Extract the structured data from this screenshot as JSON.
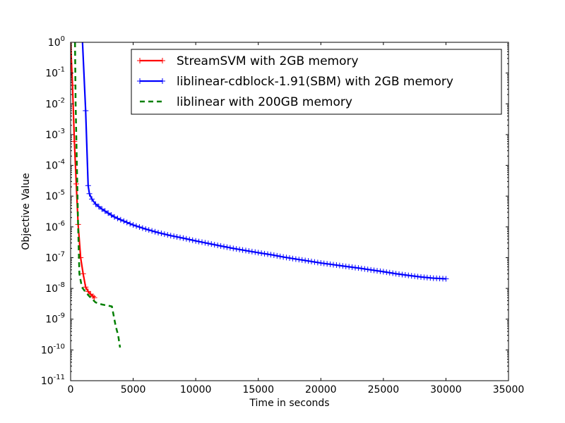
{
  "chart_data": {
    "type": "line",
    "title": "",
    "xlabel": "Time in seconds",
    "ylabel": "Objective Value",
    "xlim": [
      0,
      35000
    ],
    "ylim": [
      1e-11,
      1
    ],
    "yscale": "log",
    "xticks": [
      0,
      5000,
      10000,
      15000,
      20000,
      25000,
      30000,
      35000
    ],
    "xtick_labels": [
      "0",
      "5000",
      "10000",
      "15000",
      "20000",
      "25000",
      "30000",
      "35000"
    ],
    "yticks": [
      {
        "base": "10",
        "exp": "0",
        "value": 1
      },
      {
        "base": "10",
        "exp": "-1",
        "value": 0.1
      },
      {
        "base": "10",
        "exp": "-2",
        "value": 0.01
      },
      {
        "base": "10",
        "exp": "-3",
        "value": 0.001
      },
      {
        "base": "10",
        "exp": "-4",
        "value": 0.0001
      },
      {
        "base": "10",
        "exp": "-5",
        "value": 1e-05
      },
      {
        "base": "10",
        "exp": "-6",
        "value": 1e-06
      },
      {
        "base": "10",
        "exp": "-7",
        "value": 1e-07
      },
      {
        "base": "10",
        "exp": "-8",
        "value": 1e-08
      },
      {
        "base": "10",
        "exp": "-9",
        "value": 1e-09
      },
      {
        "base": "10",
        "exp": "-10",
        "value": 1e-10
      },
      {
        "base": "10",
        "exp": "-11",
        "value": 1e-11
      }
    ],
    "grid": false,
    "legend_position": "top-right",
    "series": [
      {
        "name": "StreamSVM with 2GB memory",
        "color": "#ff0000",
        "linestyle": "solid",
        "marker": "+",
        "points": [
          [
            0,
            1.0
          ],
          [
            150,
            0.04
          ],
          [
            300,
            0.0006
          ],
          [
            450,
            2.5e-05
          ],
          [
            600,
            1.2e-06
          ],
          [
            800,
            1e-07
          ],
          [
            1000,
            3e-08
          ],
          [
            1200,
            1.1e-08
          ],
          [
            1400,
            8e-09
          ],
          [
            1600,
            6.5e-09
          ],
          [
            1800,
            5.5e-09
          ],
          [
            1900,
            5e-09
          ]
        ]
      },
      {
        "name": "liblinear-cdblock-1.91(SBM) with 2GB memory",
        "color": "#0000ff",
        "linestyle": "solid",
        "marker": "+",
        "points": [
          [
            950,
            1.0
          ],
          [
            1200,
            0.006
          ],
          [
            1400,
            2.2e-05
          ],
          [
            1500,
            1.2e-05
          ],
          [
            1700,
            8e-06
          ],
          [
            2000,
            5.5e-06
          ],
          [
            2500,
            3.8e-06
          ],
          [
            3000,
            2.8e-06
          ],
          [
            3500,
            2.1e-06
          ],
          [
            4000,
            1.7e-06
          ],
          [
            5000,
            1.15e-06
          ],
          [
            6000,
            8.5e-07
          ],
          [
            7000,
            6.5e-07
          ],
          [
            8000,
            5.2e-07
          ],
          [
            9000,
            4.3e-07
          ],
          [
            10000,
            3.5e-07
          ],
          [
            11000,
            2.9e-07
          ],
          [
            12000,
            2.4e-07
          ],
          [
            13000,
            2e-07
          ],
          [
            14000,
            1.7e-07
          ],
          [
            15000,
            1.45e-07
          ],
          [
            16000,
            1.25e-07
          ],
          [
            17000,
            1.05e-07
          ],
          [
            18000,
            9e-08
          ],
          [
            19000,
            7.8e-08
          ],
          [
            20000,
            6.7e-08
          ],
          [
            21000,
            5.9e-08
          ],
          [
            22000,
            5.2e-08
          ],
          [
            23000,
            4.6e-08
          ],
          [
            24000,
            4e-08
          ],
          [
            25000,
            3.5e-08
          ],
          [
            26000,
            3e-08
          ],
          [
            27000,
            2.65e-08
          ],
          [
            28000,
            2.35e-08
          ],
          [
            29000,
            2.15e-08
          ],
          [
            30000,
            2.05e-08
          ]
        ]
      },
      {
        "name": "liblinear with 200GB memory",
        "color": "#007f00",
        "linestyle": "dashed",
        "marker": "",
        "points": [
          [
            350,
            1.0
          ],
          [
            400,
            0.01
          ],
          [
            500,
            0.0001
          ],
          [
            600,
            1e-06
          ],
          [
            700,
            3e-08
          ],
          [
            900,
            1.1e-08
          ],
          [
            1200,
            7.5e-09
          ],
          [
            1600,
            5e-09
          ],
          [
            2000,
            3.5e-09
          ],
          [
            2500,
            3e-09
          ],
          [
            3300,
            2.6e-09
          ],
          [
            3600,
            6e-10
          ],
          [
            3800,
            3e-10
          ],
          [
            3950,
            1.2e-10
          ]
        ]
      }
    ]
  }
}
